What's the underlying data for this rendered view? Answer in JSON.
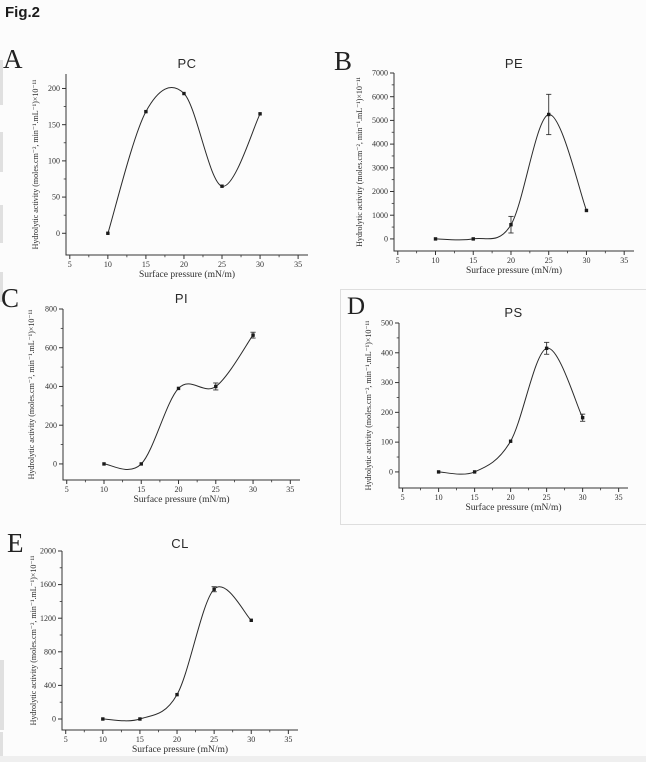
{
  "figure": {
    "label": "Fig.2"
  },
  "chart_data": [
    {
      "letter": "A",
      "type": "line",
      "title": "PC",
      "xlabel": "Surface pressure (mN/m)",
      "ylabel": "Hydrolytic activity (moles.cm⁻², min⁻¹.mL⁻¹)×10⁻¹¹",
      "x_ticks": [
        5,
        10,
        15,
        20,
        25,
        30,
        35
      ],
      "y_ticks": [
        0,
        50,
        100,
        150,
        200
      ],
      "xlim": [
        4.5,
        36.3
      ],
      "ylim": [
        -30,
        220
      ],
      "x": [
        10,
        15,
        20,
        25,
        30
      ],
      "y": [
        0,
        168,
        193,
        65,
        165
      ],
      "yerr": [
        0,
        0,
        0,
        0,
        0
      ]
    },
    {
      "letter": "B",
      "type": "line",
      "title": "PE",
      "xlabel": "Surface pressure (mN/m)",
      "ylabel": "Hydrolytic activity (moles.cm⁻², min⁻¹.mL⁻¹)×10⁻¹¹",
      "x_ticks": [
        5,
        10,
        15,
        20,
        25,
        30,
        35
      ],
      "y_ticks": [
        0,
        1000,
        2000,
        3000,
        4000,
        5000,
        6000,
        7000
      ],
      "xlim": [
        4.5,
        36.3
      ],
      "ylim": [
        -510,
        7000
      ],
      "x": [
        10,
        15,
        20,
        25,
        30
      ],
      "y": [
        0,
        0,
        600,
        5250,
        1200
      ],
      "yerr": [
        0,
        0,
        350,
        850,
        0
      ]
    },
    {
      "letter": "C",
      "type": "line",
      "title": "PI",
      "xlabel": "Surface pressure (mN/m)",
      "ylabel": "Hydrolytic activity (moles.cm⁻², min⁻¹.mL⁻¹)×10⁻¹¹",
      "x_ticks": [
        5,
        10,
        15,
        20,
        25,
        30,
        35
      ],
      "y_ticks": [
        0,
        200,
        400,
        600,
        800
      ],
      "xlim": [
        4.5,
        36.3
      ],
      "ylim": [
        -83,
        800
      ],
      "x": [
        10,
        15,
        20,
        25,
        30
      ],
      "y": [
        0,
        0,
        390,
        400,
        665
      ],
      "yerr": [
        0,
        0,
        0,
        18,
        15
      ]
    },
    {
      "letter": "D",
      "type": "line",
      "title": "PS",
      "xlabel": "Surface pressure (mN/m)",
      "ylabel": "Hydrolytic activity (moles.cm⁻², min⁻¹.mL⁻¹)×10⁻¹¹",
      "x_ticks": [
        5,
        10,
        15,
        20,
        25,
        30,
        35
      ],
      "y_ticks": [
        0,
        100,
        200,
        300,
        400,
        500
      ],
      "xlim": [
        4.5,
        36.3
      ],
      "ylim": [
        -54,
        500
      ],
      "x": [
        10,
        15,
        20,
        25,
        30
      ],
      "y": [
        0,
        0,
        103,
        415,
        182
      ],
      "yerr": [
        0,
        0,
        0,
        20,
        12
      ]
    },
    {
      "letter": "E",
      "type": "line",
      "title": "CL",
      "xlabel": "Surface pressure (mN/m)",
      "ylabel": "Hydrolytic activity (moles.cm⁻², min⁻¹.mL⁻¹)×10⁻¹¹",
      "x_ticks": [
        5,
        10,
        15,
        20,
        25,
        30,
        35
      ],
      "y_ticks": [
        0,
        400,
        800,
        1200,
        1600,
        2000
      ],
      "xlim": [
        4.5,
        36.3
      ],
      "ylim": [
        -131,
        2000
      ],
      "x": [
        10,
        15,
        20,
        25,
        30
      ],
      "y": [
        0,
        0,
        290,
        1545,
        1175
      ],
      "yerr": [
        0,
        0,
        0,
        30,
        0
      ]
    }
  ]
}
